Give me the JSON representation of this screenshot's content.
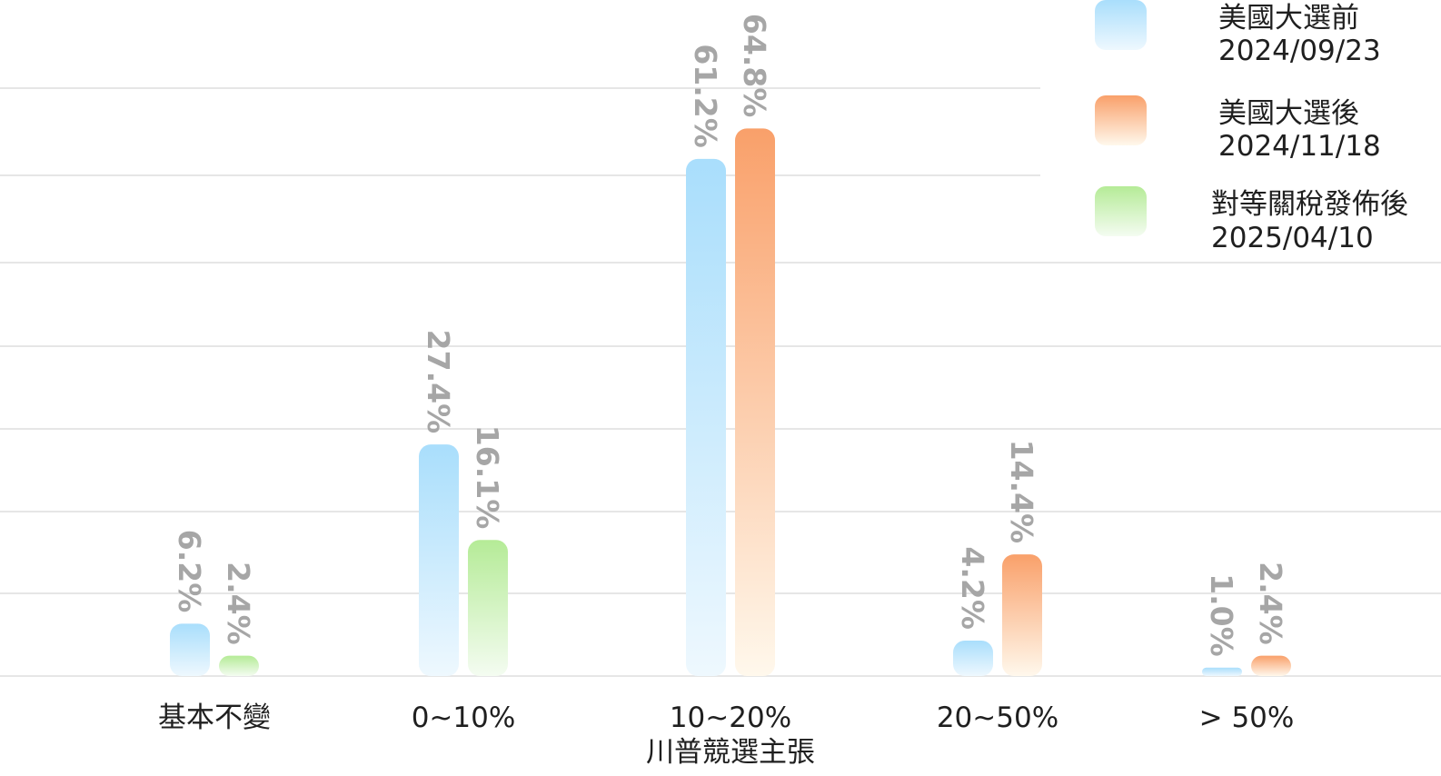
{
  "chart_data": {
    "type": "bar",
    "categories": [
      {
        "label": "基本不變",
        "sublabel": ""
      },
      {
        "label": "0~10%",
        "sublabel": ""
      },
      {
        "label": "10~20%",
        "sublabel": "川普競選主張"
      },
      {
        "label": "20~50%",
        "sublabel": ""
      },
      {
        "label": "> 50%",
        "sublabel": ""
      }
    ],
    "series": [
      {
        "name": "美國大選前",
        "date": "2024/09/23",
        "color": "#9ad8fb"
      },
      {
        "name": "美國大選後",
        "date": "2024/11/18",
        "color": "#f9a06a"
      },
      {
        "name": "對等關稅發佈後",
        "date": "2025/04/10",
        "color": "#9be88e"
      }
    ],
    "bars": [
      [
        {
          "series": 0,
          "value": 6.2,
          "label": "6.2%"
        },
        {
          "series": 2,
          "value": 2.4,
          "label": "2.4%"
        }
      ],
      [
        {
          "series": 0,
          "value": 27.4,
          "label": "27.4%"
        },
        {
          "series": 2,
          "value": 16.1,
          "label": "16.1%"
        }
      ],
      [
        {
          "series": 0,
          "value": 61.2,
          "label": "61.2%"
        },
        {
          "series": 1,
          "value": 64.8,
          "label": "64.8%"
        }
      ],
      [
        {
          "series": 0,
          "value": 4.2,
          "label": "4.2%"
        },
        {
          "series": 1,
          "value": 14.4,
          "label": "14.4%"
        }
      ],
      [
        {
          "series": 0,
          "value": 1.0,
          "label": "1.0%"
        },
        {
          "series": 1,
          "value": 2.4,
          "label": "2.4%"
        }
      ]
    ],
    "ylim": [
      0,
      70
    ],
    "grid": true,
    "legend_position": "top-right"
  }
}
